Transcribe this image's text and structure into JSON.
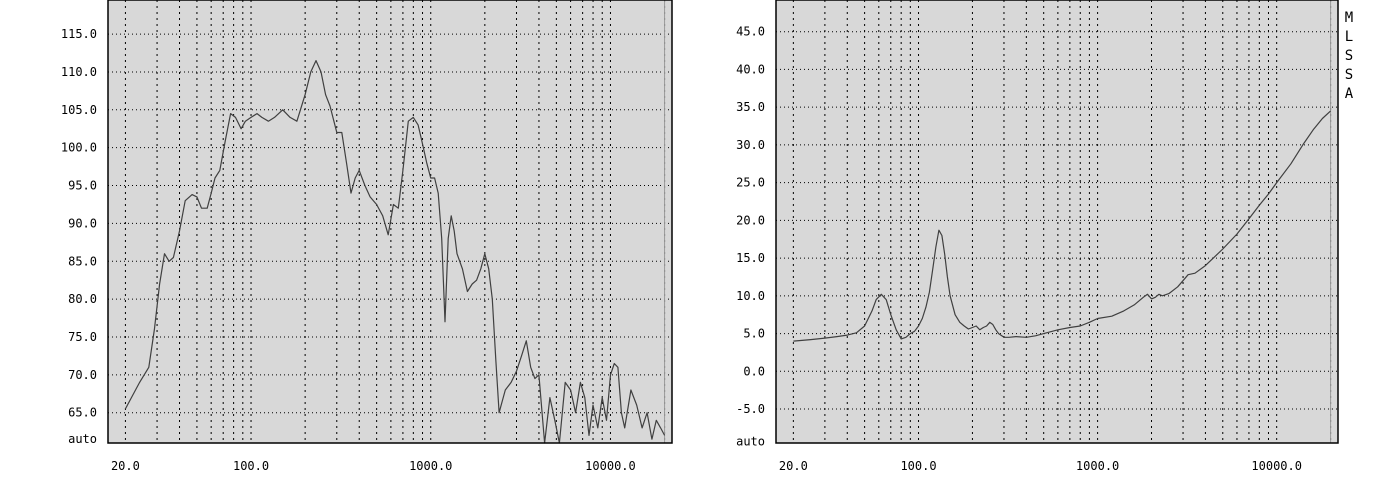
{
  "software_label": "MLSSA",
  "colors": {
    "plot_bg": "#d8d8d8",
    "page_bg": "#ffffff",
    "grid": "#000000",
    "trace": "#404040"
  },
  "chart_data": [
    {
      "type": "line",
      "title": "",
      "xlabel": "",
      "ylabel": "",
      "x_scale": "log",
      "xlim": [
        16,
        22000
      ],
      "ylim": [
        61,
        119.5
      ],
      "grid": true,
      "x_tick_labels": [
        "20.0",
        "100.0",
        "1000.0",
        "10000.0"
      ],
      "x_tick_values": [
        20,
        100,
        1000,
        10000
      ],
      "y_tick_labels": [
        "115.0",
        "110.0",
        "105.0",
        "100.0",
        "95.0",
        "90.0",
        "85.0",
        "80.0",
        "75.0",
        "70.0",
        "65.0",
        "auto"
      ],
      "y_tick_values": [
        115,
        110,
        105,
        100,
        95,
        90,
        85,
        80,
        75,
        70,
        65,
        61.5
      ],
      "series": [
        {
          "x": [
            20,
            24,
            27,
            29,
            31,
            33,
            35,
            37,
            40,
            43,
            47,
            50,
            53,
            57,
            60,
            63,
            67,
            72,
            77,
            82,
            88,
            93,
            100,
            108,
            115,
            125,
            135,
            150,
            165,
            180,
            200,
            215,
            230,
            245,
            260,
            275,
            300,
            320,
            340,
            360,
            380,
            400,
            430,
            460,
            500,
            540,
            580,
            620,
            660,
            700,
            750,
            800,
            850,
            900,
            950,
            1000,
            1050,
            1100,
            1150,
            1200,
            1250,
            1300,
            1350,
            1400,
            1500,
            1600,
            1700,
            1800,
            1900,
            2000,
            2100,
            2200,
            2300,
            2400,
            2600,
            2800,
            3000,
            3200,
            3400,
            3600,
            3800,
            4000,
            4300,
            4600,
            4900,
            5200,
            5600,
            6000,
            6400,
            6800,
            7200,
            7600,
            8000,
            8500,
            9000,
            9500,
            10000,
            10500,
            11000,
            11500,
            12000,
            13000,
            14000,
            15000,
            16000,
            17000,
            18000,
            19000,
            20000
          ],
          "y": [
            65.5,
            69,
            71,
            76,
            82,
            86,
            85,
            85.5,
            89,
            93,
            93.8,
            93.5,
            92,
            92,
            94,
            96,
            97,
            101,
            104.5,
            104,
            102.5,
            103.5,
            104,
            104.5,
            104,
            103.5,
            104,
            105,
            104,
            103.5,
            107,
            110,
            111.5,
            110,
            107,
            105.5,
            102,
            102,
            98,
            94,
            96,
            97,
            95,
            93.5,
            92.5,
            91,
            88.5,
            92.5,
            92,
            97,
            103.5,
            104,
            103,
            100.5,
            98,
            96,
            96,
            94,
            88,
            77,
            88,
            91,
            89,
            86,
            84,
            81,
            82,
            82.5,
            84,
            86,
            84,
            80,
            72,
            65,
            68,
            69,
            70.5,
            72.5,
            74.5,
            71,
            69.5,
            70,
            61,
            67,
            64,
            61,
            69,
            68,
            65,
            69,
            67,
            62,
            66,
            63,
            67,
            64,
            70,
            71.5,
            71,
            65,
            63,
            68,
            66,
            63,
            65,
            61.5,
            64,
            63,
            62
          ]
        }
      ]
    },
    {
      "type": "line",
      "title": "",
      "xlabel": "",
      "ylabel": "",
      "x_scale": "log",
      "xlim": [
        16,
        22000
      ],
      "ylim": [
        -9.5,
        49.2
      ],
      "grid": true,
      "x_tick_labels": [
        "20.0",
        "100.0",
        "1000.0",
        "10000.0"
      ],
      "x_tick_values": [
        20,
        100,
        1000,
        10000
      ],
      "y_tick_labels": [
        "45.0",
        "40.0",
        "35.0",
        "30.0",
        "25.0",
        "20.0",
        "15.0",
        "10.0",
        "5.0",
        "0.0",
        "-5.0",
        "auto"
      ],
      "y_tick_values": [
        45,
        40,
        35,
        30,
        25,
        20,
        15,
        10,
        5,
        0,
        -5,
        -9.3
      ],
      "series": [
        {
          "x": [
            20,
            25,
            30,
            35,
            40,
            45,
            50,
            55,
            58,
            62,
            66,
            70,
            75,
            80,
            85,
            90,
            95,
            100,
            105,
            110,
            115,
            120,
            125,
            130,
            135,
            140,
            145,
            150,
            160,
            170,
            180,
            190,
            200,
            210,
            220,
            230,
            240,
            250,
            260,
            270,
            280,
            300,
            320,
            350,
            400,
            450,
            500,
            600,
            700,
            800,
            900,
            1000,
            1200,
            1400,
            1600,
            1800,
            1900,
            2000,
            2100,
            2200,
            2300,
            2500,
            2800,
            3000,
            3200,
            3500,
            4000,
            5000,
            6000,
            7000,
            8000,
            9000,
            10000,
            12000,
            14000,
            16000,
            18000,
            20000
          ],
          "y": [
            4,
            4.2,
            4.4,
            4.6,
            4.8,
            5.1,
            6,
            8,
            9.5,
            10.2,
            9.5,
            7.5,
            5.5,
            4.3,
            4.5,
            5,
            5.3,
            6,
            7,
            8.5,
            10.5,
            13.5,
            16.5,
            18.7,
            18,
            15.5,
            12.5,
            10,
            7.5,
            6.5,
            6,
            5.6,
            5.8,
            6,
            5.5,
            5.8,
            6,
            6.5,
            6.2,
            5.5,
            5,
            4.5,
            4.5,
            4.6,
            4.5,
            4.7,
            5,
            5.5,
            5.8,
            6,
            6.5,
            7,
            7.3,
            8,
            8.8,
            9.8,
            10.2,
            9.6,
            9.8,
            10.2,
            10,
            10.3,
            11.2,
            12,
            12.8,
            13,
            14,
            16.2,
            18.2,
            20.2,
            22,
            23.5,
            25,
            27.5,
            30,
            32,
            33.5,
            34.5
          ]
        }
      ]
    }
  ]
}
